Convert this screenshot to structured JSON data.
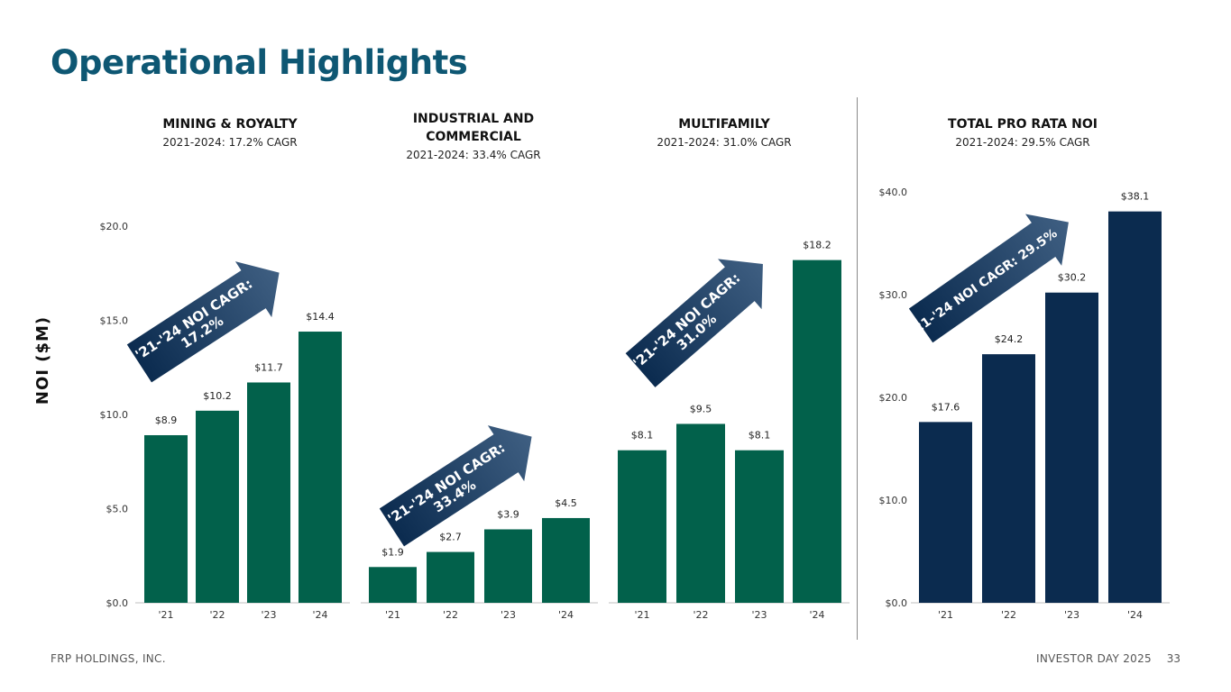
{
  "title": "Operational Highlights",
  "footer": {
    "left": "FRP HOLDINGS, INC.",
    "right": "INVESTOR DAY 2025",
    "page": "33"
  },
  "y_axis_label": "NOI ($M)",
  "colors": {
    "title": "#0e5773",
    "green": "#02614b",
    "navy": "#0b2b4f",
    "arrow": "#1f3f63"
  },
  "chart_data": [
    {
      "type": "bar",
      "title": "MINING & ROYALTY",
      "subtitle": "2021-2024: 17.2% CAGR",
      "categories": [
        "'21",
        "'22",
        "'23",
        "'24"
      ],
      "values": [
        8.9,
        10.2,
        11.7,
        14.4
      ],
      "data_labels": [
        "$8.9",
        "$10.2",
        "$11.7",
        "$14.4"
      ],
      "ylim": [
        0,
        20
      ],
      "y_ticks": [
        "$0.0",
        "$5.0",
        "$10.0",
        "$15.0",
        "$20.0"
      ],
      "annotation": [
        "'21-'24 NOI CAGR:",
        "17.2%"
      ],
      "color": "#02614b"
    },
    {
      "type": "bar",
      "title": "INDUSTRIAL AND COMMERCIAL",
      "subtitle": "2021-2024: 33.4% CAGR",
      "categories": [
        "'21",
        "'22",
        "'23",
        "'24"
      ],
      "values": [
        1.9,
        2.7,
        3.9,
        4.5
      ],
      "data_labels": [
        "$1.9",
        "$2.7",
        "$3.9",
        "$4.5"
      ],
      "ylim": [
        0,
        20
      ],
      "annotation": [
        "'21-'24 NOI CAGR:",
        "33.4%"
      ],
      "color": "#02614b"
    },
    {
      "type": "bar",
      "title": "MULTIFAMILY",
      "subtitle": "2021-2024: 31.0% CAGR",
      "categories": [
        "'21",
        "'22",
        "'23",
        "'24"
      ],
      "values": [
        8.1,
        9.5,
        8.1,
        18.2
      ],
      "data_labels": [
        "$8.1",
        "$9.5",
        "$8.1",
        "$18.2"
      ],
      "ylim": [
        0,
        20
      ],
      "annotation": [
        "'21-'24 NOI CAGR:",
        "31.0%"
      ],
      "color": "#02614b"
    },
    {
      "type": "bar",
      "title": "TOTAL PRO RATA NOI",
      "subtitle": "2021-2024: 29.5% CAGR",
      "categories": [
        "'21",
        "'22",
        "'23",
        "'24"
      ],
      "values": [
        17.6,
        24.2,
        30.2,
        38.1
      ],
      "data_labels": [
        "$17.6",
        "$24.2",
        "$30.2",
        "$38.1"
      ],
      "ylim": [
        0,
        40
      ],
      "y_ticks": [
        "$0.0",
        "$10.0",
        "$20.0",
        "$30.0",
        "$40.0"
      ],
      "annotation": [
        "'21-'24 NOI CAGR: 29.5%"
      ],
      "color": "#0b2b4f"
    }
  ]
}
